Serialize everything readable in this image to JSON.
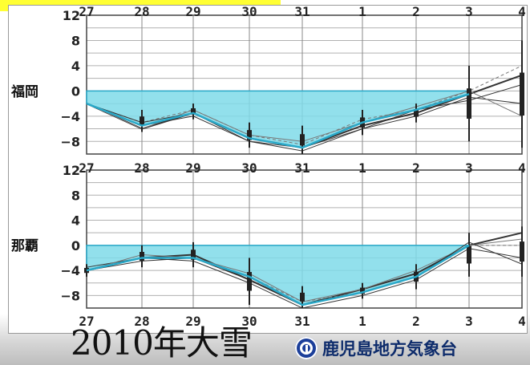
{
  "footer": {
    "title": "2010年大雪",
    "organization": "鹿児島地方気象台",
    "logo": "jma-logo-icon"
  },
  "colors": {
    "fill": "#7fdbe9",
    "analysis_line": "#29a8c8",
    "member_line": "#333333",
    "banner": "#ffff33",
    "org_text": "#0d2b6b"
  },
  "chart_data": [
    {
      "type": "line",
      "station": "福岡",
      "x_ticks": [
        "27",
        "28",
        "29",
        "30",
        "31",
        "1",
        "2",
        "3",
        "4"
      ],
      "y_ticks": [
        "12",
        "8",
        "4",
        "0",
        "−4",
        "−8"
      ],
      "ylim": [
        -10,
        12
      ],
      "grid": true,
      "analysis": [
        -2,
        -5.5,
        -3.5,
        -7.5,
        -9,
        -5,
        -3,
        -0.5,
        null
      ],
      "forecast_members": [
        [
          -2,
          -6,
          -3.5,
          -7.5,
          -9,
          -5.5,
          -3.5,
          -0.5,
          2.5
        ],
        [
          -2,
          -5,
          -3,
          -7,
          -8.5,
          -4.5,
          -3,
          0,
          4
        ],
        [
          -2,
          -5.5,
          -4,
          -8,
          -9.5,
          -6,
          -4,
          -1,
          -2
        ],
        [
          -2,
          -6,
          -3,
          -7,
          -8,
          -5,
          -2.5,
          0,
          -4
        ],
        [
          -2,
          -5,
          -3.5,
          -8,
          -9,
          -6,
          -3,
          -1.5,
          1
        ]
      ],
      "spread": [
        {
          "x": 1,
          "min": -6.5,
          "max": -3
        },
        {
          "x": 2,
          "min": -4.5,
          "max": -2
        },
        {
          "x": 3,
          "min": -9,
          "max": -5
        },
        {
          "x": 4,
          "min": -10,
          "max": -5.5
        },
        {
          "x": 5,
          "min": -7,
          "max": -3
        },
        {
          "x": 6,
          "min": -5,
          "max": -2
        },
        {
          "x": 7,
          "min": -8,
          "max": 4
        },
        {
          "x": 8,
          "min": -9,
          "max": 8
        }
      ]
    },
    {
      "type": "line",
      "station": "那覇",
      "x_ticks": [
        "27",
        "28",
        "29",
        "30",
        "31",
        "1",
        "2",
        "3",
        "4"
      ],
      "y_ticks": [
        "12",
        "8",
        "4",
        "0",
        "−4",
        "−8"
      ],
      "ylim": [
        -10,
        12
      ],
      "grid": true,
      "analysis": [
        -4,
        -2,
        -2,
        -5,
        -9.5,
        -7.5,
        -5,
        0,
        null
      ],
      "forecast_members": [
        [
          -4,
          -2,
          -1.5,
          -5.5,
          -9.5,
          -7,
          -4.5,
          0,
          2
        ],
        [
          -4,
          -2,
          -2,
          -5,
          -9,
          -7.5,
          -5,
          0,
          0
        ],
        [
          -3.5,
          -2,
          -2.5,
          -6,
          -10,
          -8,
          -5.5,
          -0.5,
          -2
        ],
        [
          -4,
          -1.5,
          -2,
          -4.5,
          -9,
          -7,
          -4,
          0,
          1
        ],
        [
          -4,
          -2.5,
          -2,
          -5.5,
          -9.5,
          -7.5,
          -5,
          0.5,
          -3
        ]
      ],
      "spread": [
        {
          "x": 0,
          "min": -5,
          "max": -3
        },
        {
          "x": 1,
          "min": -3.5,
          "max": 0
        },
        {
          "x": 2,
          "min": -3.5,
          "max": 0.5
        },
        {
          "x": 3,
          "min": -9.5,
          "max": -2
        },
        {
          "x": 4,
          "min": -10,
          "max": -6.5
        },
        {
          "x": 5,
          "min": -8.5,
          "max": -6
        },
        {
          "x": 6,
          "min": -7,
          "max": -3
        },
        {
          "x": 7,
          "min": -5,
          "max": 2
        },
        {
          "x": 8,
          "min": -5,
          "max": 3
        }
      ]
    }
  ]
}
